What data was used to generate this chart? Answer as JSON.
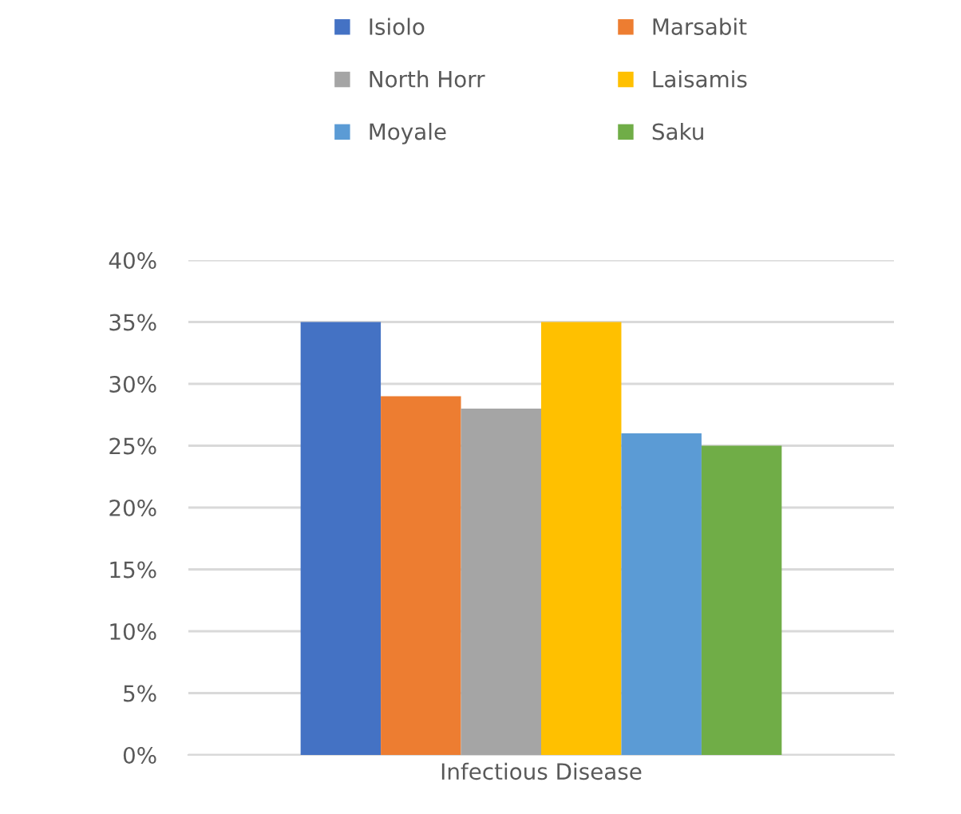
{
  "chart_data": {
    "type": "bar",
    "categories": [
      "Infectious Disease"
    ],
    "series": [
      {
        "name": "Isiolo",
        "color": "#4472c4",
        "values": [
          35
        ]
      },
      {
        "name": "Marsabit",
        "color": "#ed7d31",
        "values": [
          29
        ]
      },
      {
        "name": "North Horr",
        "color": "#a5a5a5",
        "values": [
          28
        ]
      },
      {
        "name": "Laisamis",
        "color": "#ffc000",
        "values": [
          35
        ]
      },
      {
        "name": "Moyale",
        "color": "#5b9bd5",
        "values": [
          26
        ]
      },
      {
        "name": "Saku",
        "color": "#70ad47",
        "values": [
          25
        ]
      }
    ],
    "ylim": [
      0,
      40
    ],
    "yticks": [
      {
        "value": 0,
        "label": "0%"
      },
      {
        "value": 5,
        "label": "5%"
      },
      {
        "value": 10,
        "label": "10%"
      },
      {
        "value": 15,
        "label": "15%"
      },
      {
        "value": 20,
        "label": "20%"
      },
      {
        "value": 25,
        "label": "25%"
      },
      {
        "value": 30,
        "label": "30%"
      },
      {
        "value": 35,
        "label": "35%"
      },
      {
        "value": 40,
        "label": "40%"
      }
    ],
    "grid": "y",
    "legend": "top"
  }
}
